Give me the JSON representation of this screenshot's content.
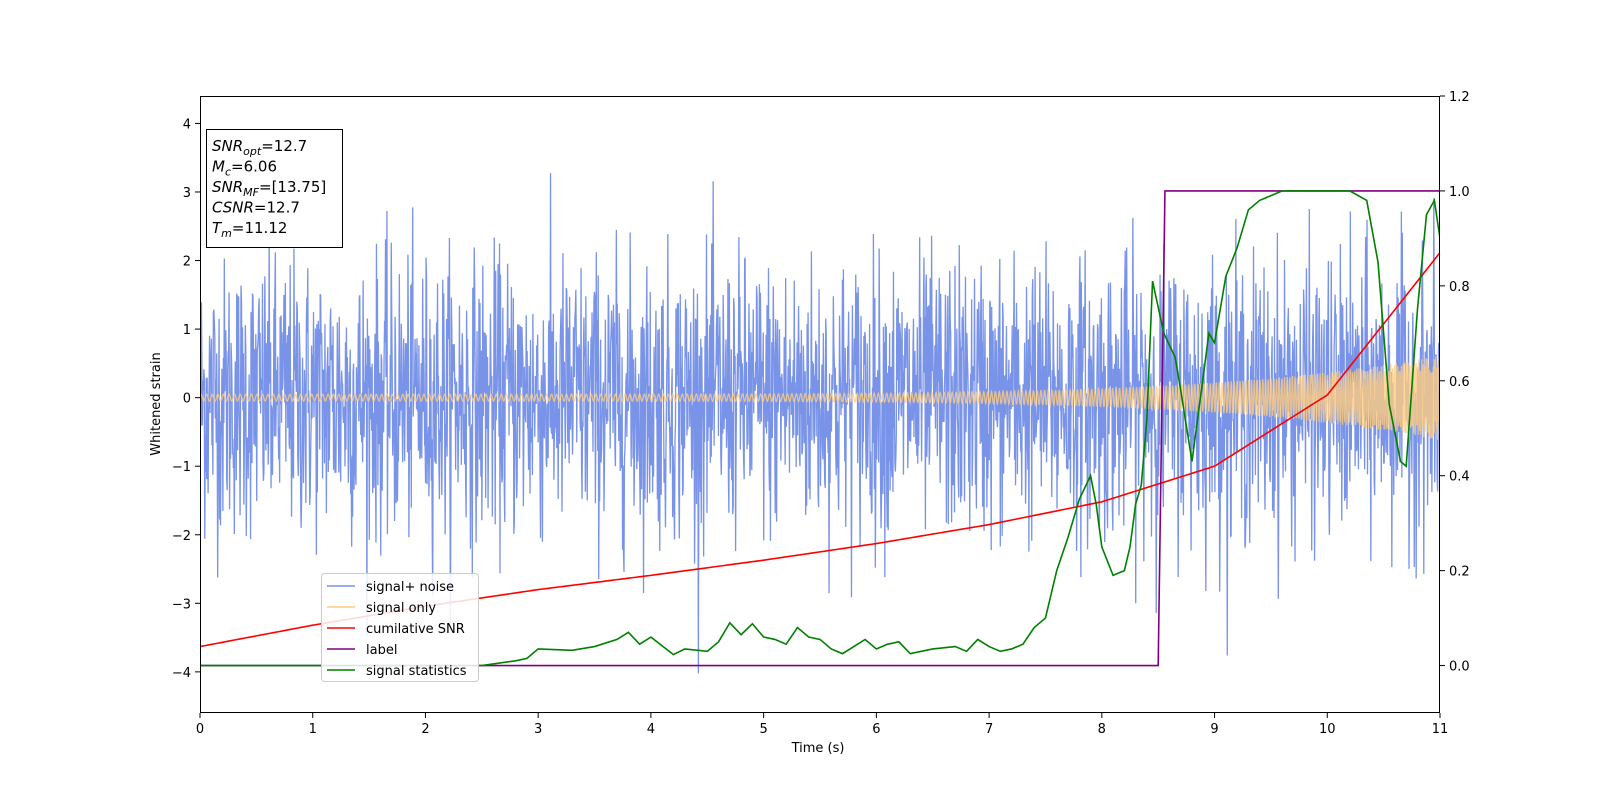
{
  "chart_data": {
    "type": "line",
    "xlabel": "Time (s)",
    "ylabel": "Whitened strain",
    "xlim": [
      0,
      11
    ],
    "ylim": [
      -4.6,
      4.4
    ],
    "y2lim": [
      -0.1,
      1.2
    ],
    "xticks": [
      0,
      1,
      2,
      3,
      4,
      5,
      6,
      7,
      8,
      9,
      10,
      11
    ],
    "xtick_labels": [
      "0",
      "1",
      "2",
      "3",
      "4",
      "5",
      "6",
      "7",
      "8",
      "9",
      "10",
      "11"
    ],
    "yticks": [
      -4,
      -3,
      -2,
      -1,
      0,
      1,
      2,
      3,
      4
    ],
    "ytick_labels": [
      "−4",
      "−3",
      "−2",
      "−1",
      "0",
      "1",
      "2",
      "3",
      "4"
    ],
    "y2ticks": [
      0.0,
      0.2,
      0.4,
      0.6,
      0.8,
      1.0,
      1.2
    ],
    "y2tick_labels": [
      "0.0",
      "0.2",
      "0.4",
      "0.6",
      "0.8",
      "1.0",
      "1.2"
    ],
    "grid": false,
    "legend_position": "lower-left",
    "annotation": {
      "lines": [
        {
          "name": "SNR",
          "sub": "opt",
          "value": "=12.7"
        },
        {
          "name": "M",
          "sub": "c",
          "value": "=6.06"
        },
        {
          "name": "SNR",
          "sub": "MF",
          "value": "=[13.75]"
        },
        {
          "name": "CSNR",
          "sub": "",
          "value": "=12.7"
        },
        {
          "name": "T",
          "sub": "m",
          "value": "=11.12"
        }
      ]
    },
    "series": [
      {
        "name": "signal+ noise",
        "axis": "left",
        "color": "#7893e8",
        "kind": "noise",
        "std": 1.0,
        "range": [
          -4.2,
          4.0
        ]
      },
      {
        "name": "signal only",
        "axis": "left",
        "color": "#ffcc80",
        "kind": "chirp",
        "amplitude_start": 0.05,
        "amplitude_end": 0.62
      },
      {
        "name": "cumilative SNR",
        "axis": "right",
        "color": "#ff0000",
        "kind": "curve",
        "x": [
          0,
          1,
          2,
          3,
          4,
          5,
          6,
          7,
          8,
          9,
          10,
          11
        ],
        "y": [
          0.04,
          0.085,
          0.125,
          0.16,
          0.19,
          0.222,
          0.257,
          0.297,
          0.345,
          0.42,
          0.57,
          0.87
        ]
      },
      {
        "name": "label",
        "axis": "right",
        "color": "#800080",
        "kind": "step",
        "x": [
          0,
          8.5,
          8.56,
          11
        ],
        "y": [
          0,
          0,
          1,
          1
        ]
      },
      {
        "name": "signal statistics",
        "axis": "right",
        "color": "#008000",
        "kind": "curve",
        "x": [
          0,
          2.5,
          2.8,
          2.9,
          3.0,
          3.3,
          3.5,
          3.7,
          3.8,
          3.9,
          4.0,
          4.2,
          4.3,
          4.5,
          4.6,
          4.7,
          4.8,
          4.9,
          5.0,
          5.1,
          5.2,
          5.3,
          5.4,
          5.5,
          5.6,
          5.7,
          5.8,
          5.9,
          6.0,
          6.1,
          6.2,
          6.3,
          6.4,
          6.5,
          6.7,
          6.8,
          6.9,
          7.0,
          7.1,
          7.2,
          7.3,
          7.4,
          7.5,
          7.6,
          7.7,
          7.8,
          7.9,
          7.95,
          8.0,
          8.1,
          8.2,
          8.25,
          8.3,
          8.35,
          8.4,
          8.45,
          8.55,
          8.65,
          8.7,
          8.8,
          8.85,
          8.95,
          9.0,
          9.1,
          9.2,
          9.3,
          9.4,
          9.5,
          9.6,
          9.8,
          10.0,
          10.2,
          10.35,
          10.45,
          10.55,
          10.65,
          10.7,
          10.8,
          10.88,
          10.95,
          11.0
        ],
        "y": [
          0.0,
          0.0,
          0.01,
          0.015,
          0.035,
          0.032,
          0.04,
          0.055,
          0.07,
          0.045,
          0.06,
          0.023,
          0.035,
          0.03,
          0.05,
          0.09,
          0.065,
          0.088,
          0.06,
          0.055,
          0.045,
          0.08,
          0.06,
          0.055,
          0.035,
          0.025,
          0.04,
          0.055,
          0.035,
          0.045,
          0.05,
          0.025,
          0.03,
          0.035,
          0.04,
          0.03,
          0.055,
          0.04,
          0.03,
          0.035,
          0.045,
          0.08,
          0.1,
          0.2,
          0.27,
          0.35,
          0.4,
          0.34,
          0.25,
          0.19,
          0.2,
          0.25,
          0.34,
          0.38,
          0.52,
          0.81,
          0.7,
          0.65,
          0.58,
          0.43,
          0.52,
          0.7,
          0.68,
          0.82,
          0.88,
          0.96,
          0.98,
          0.99,
          1.0,
          1.0,
          1.0,
          1.0,
          0.98,
          0.85,
          0.55,
          0.43,
          0.42,
          0.75,
          0.95,
          0.98,
          0.9
        ]
      }
    ]
  }
}
